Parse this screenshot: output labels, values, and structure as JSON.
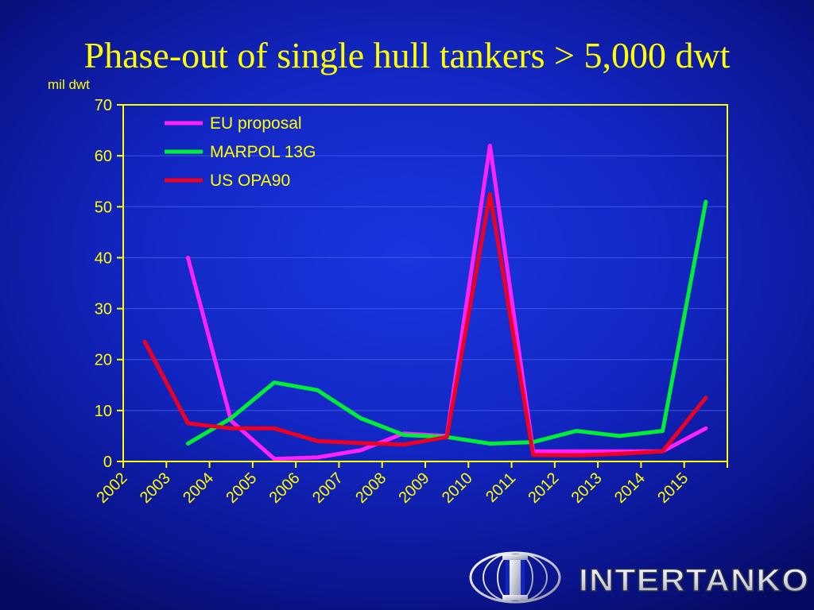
{
  "slide": {
    "title": "Phase-out of single hull tankers > 5,000 dwt"
  },
  "colors": {
    "background": "#1226c2",
    "text": "#ffff00",
    "axis": "#ffff00",
    "eu": "#ff22ff",
    "marpol": "#00ee33",
    "us": "#ee0022"
  },
  "chart_data": {
    "type": "line",
    "ylabel": "mil dwt",
    "ylim": [
      0,
      70
    ],
    "yticks": [
      "0",
      "10",
      "20",
      "30",
      "40",
      "50",
      "60",
      "70"
    ],
    "categories": [
      "2002",
      "2003",
      "2004",
      "2005",
      "2006",
      "2007",
      "2008",
      "2009",
      "2010",
      "2011",
      "2012",
      "2013",
      "2014",
      "2015"
    ],
    "legend_position": "top-left",
    "grid": true,
    "series": [
      {
        "name": "EU proposal",
        "color": "#ff22ff",
        "values": [
          null,
          40,
          8,
          0.5,
          0.8,
          2.2,
          5.5,
          5,
          62,
          2,
          2,
          2,
          2,
          6.5
        ]
      },
      {
        "name": "MARPOL 13G",
        "color": "#00ee33",
        "values": [
          null,
          3.5,
          8.5,
          15.5,
          14,
          8.5,
          5.2,
          4.8,
          3.5,
          3.8,
          6,
          5,
          6,
          51
        ]
      },
      {
        "name": "US OPA90",
        "color": "#ee0022",
        "values": [
          23.5,
          7.5,
          6.5,
          6.5,
          4,
          3.6,
          3.3,
          4.8,
          52.5,
          1.3,
          1.2,
          1.5,
          2,
          12.5
        ]
      }
    ]
  },
  "logo": {
    "text": "INTERTANKO"
  }
}
